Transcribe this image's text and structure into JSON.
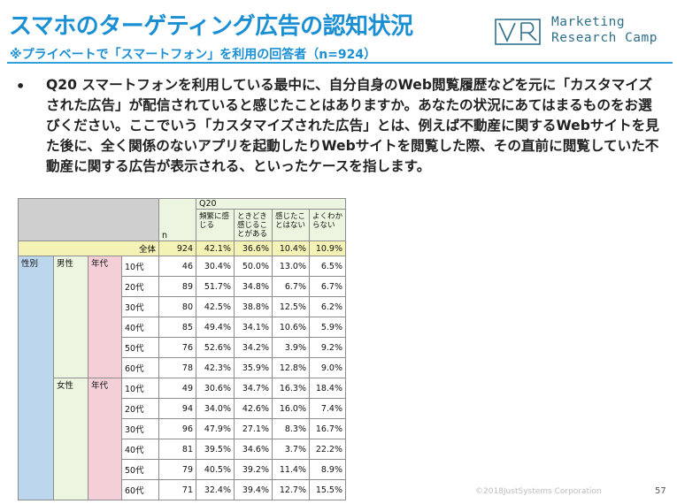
{
  "header": {
    "title": "スマホのターゲティング広告の認知状況",
    "subtitle": "※プライベートで「スマートフォン」を利用の回答者（n=924）"
  },
  "logo": {
    "line1": "Marketing",
    "line2": "Research Camp",
    "color": "#2e6f8a"
  },
  "question": {
    "bullet": "•",
    "text": "Q20 スマートフォンを利用している最中に、自分自身のWeb閲覧履歴などを元に「カスタマイズされた広告」が配信されていると感じたことはありますか。あなたの状況にあてはまるものをお選びください。ここでいう「カスタマイズされた広告」とは、例えば不動産に関するWebサイトを見た後に、全く関係のないアプリを起動したりWebサイトを閲覧した際、その直前に閲覧していた不動産に関する広告が表示される、といったケースを指します。"
  },
  "table": {
    "question_label": "Q20",
    "n_label": "n",
    "columns": [
      "頻繁に感じる",
      "ときどき感じることがある",
      "感じたことはない",
      "よくわからない"
    ],
    "total": {
      "label": "全体",
      "n": "924",
      "values": [
        "42.1%",
        "36.6%",
        "10.4%",
        "10.9%"
      ]
    },
    "segment_label": "性別",
    "age_label": "年代",
    "groups": [
      {
        "label": "男性",
        "age_label": "年代",
        "rows": [
          {
            "label": "10代",
            "n": "46",
            "values": [
              "30.4%",
              "50.0%",
              "13.0%",
              "6.5%"
            ]
          },
          {
            "label": "20代",
            "n": "89",
            "values": [
              "51.7%",
              "34.8%",
              "6.7%",
              "6.7%"
            ]
          },
          {
            "label": "30代",
            "n": "80",
            "values": [
              "42.5%",
              "38.8%",
              "12.5%",
              "6.2%"
            ]
          },
          {
            "label": "40代",
            "n": "85",
            "values": [
              "49.4%",
              "34.1%",
              "10.6%",
              "5.9%"
            ]
          },
          {
            "label": "50代",
            "n": "76",
            "values": [
              "52.6%",
              "34.2%",
              "3.9%",
              "9.2%"
            ]
          },
          {
            "label": "60代",
            "n": "78",
            "values": [
              "42.3%",
              "35.9%",
              "12.8%",
              "9.0%"
            ]
          }
        ]
      },
      {
        "label": "女性",
        "age_label": "年代",
        "rows": [
          {
            "label": "10代",
            "n": "49",
            "values": [
              "30.6%",
              "34.7%",
              "16.3%",
              "18.4%"
            ]
          },
          {
            "label": "20代",
            "n": "94",
            "values": [
              "34.0%",
              "42.6%",
              "16.0%",
              "7.4%"
            ]
          },
          {
            "label": "30代",
            "n": "96",
            "values": [
              "47.9%",
              "27.1%",
              "8.3%",
              "16.7%"
            ]
          },
          {
            "label": "40代",
            "n": "81",
            "values": [
              "39.5%",
              "34.6%",
              "3.7%",
              "22.2%"
            ]
          },
          {
            "label": "50代",
            "n": "79",
            "values": [
              "40.5%",
              "39.2%",
              "11.4%",
              "8.9%"
            ]
          },
          {
            "label": "60代",
            "n": "71",
            "values": [
              "32.4%",
              "39.4%",
              "12.7%",
              "15.5%"
            ]
          }
        ]
      }
    ]
  },
  "footer": {
    "copyright": "©2018JustSystems Corporation",
    "page_number": "57"
  },
  "colors": {
    "accent": "#1b8fd3",
    "total_row": "#f5f2b6",
    "segment_blue": "#bcd6ee",
    "segment_green": "#ebf5df",
    "segment_pink": "#f4cfd8"
  }
}
